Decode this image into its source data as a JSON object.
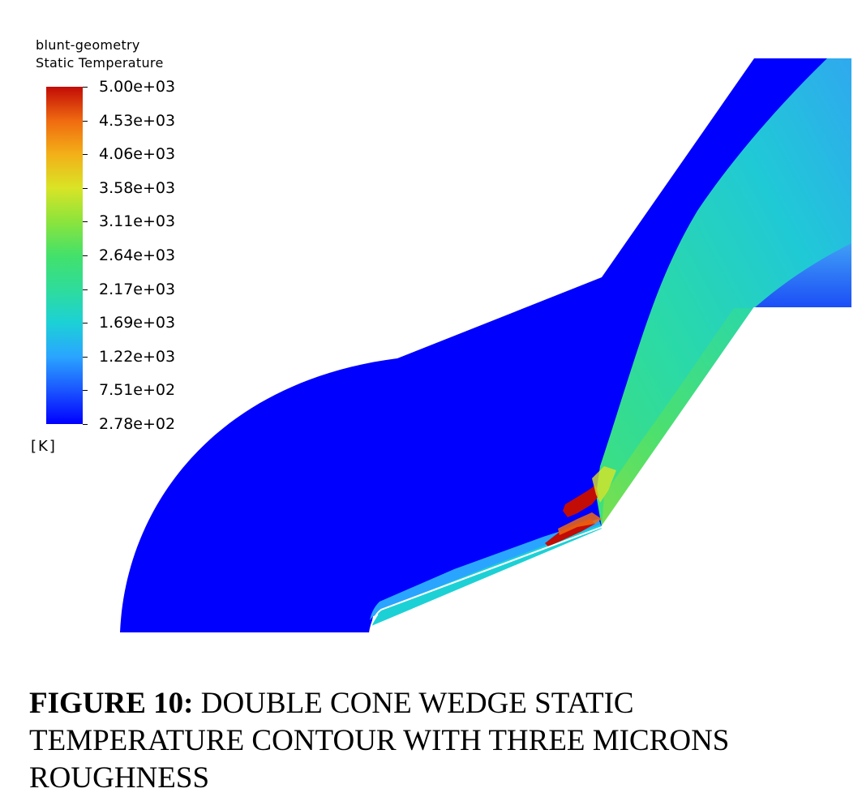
{
  "legend": {
    "title_line1": "blunt-geometry",
    "title_line2": "Static Temperature",
    "unit": "[K]",
    "ticks": [
      "5.00e+03",
      "4.53e+03",
      "4.06e+03",
      "3.58e+03",
      "3.11e+03",
      "2.64e+03",
      "2.17e+03",
      "1.69e+03",
      "1.22e+03",
      "7.51e+02",
      "2.78e+02"
    ],
    "colors": {
      "min": "#0000ff",
      "low": "#2aa5ff",
      "mid": "#43e16a",
      "high": "#f3b018",
      "max": "#c20c06"
    }
  },
  "caption": {
    "label": "FIGURE 10:",
    "text": "DOUBLE CONE WEDGE STATIC TEMPERATURE CONTOUR WITH THREE MICRONS ROUGHNESS"
  }
}
